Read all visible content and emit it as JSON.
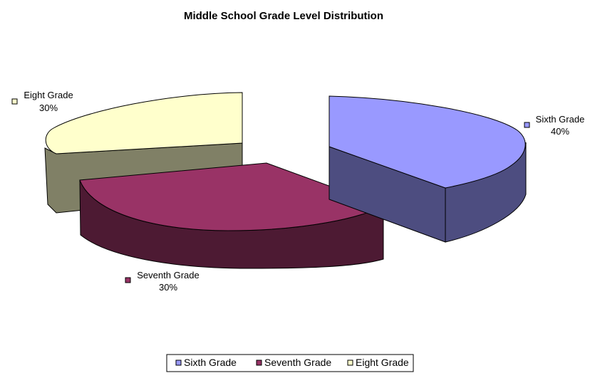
{
  "chart_data": {
    "type": "pie",
    "style": "3d-exploded",
    "title": "Middle School Grade Level Distribution",
    "categories": [
      "Sixth Grade",
      "Seventh Grade",
      "Eight Grade"
    ],
    "values": [
      40,
      30,
      30
    ],
    "value_labels": [
      "40%",
      "30%",
      "30%"
    ],
    "colors": {
      "Sixth Grade": {
        "top": "#9999FF",
        "side": "#4D4D80"
      },
      "Seventh Grade": {
        "top": "#993366",
        "side": "#4D1A33"
      },
      "Eight Grade": {
        "top": "#FFFFCC",
        "side": "#808066"
      }
    },
    "legend_position": "bottom"
  }
}
